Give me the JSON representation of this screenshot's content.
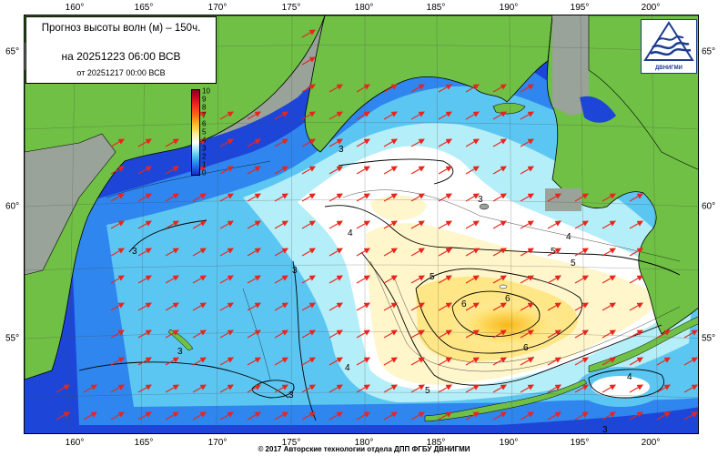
{
  "title": {
    "line1": "Прогноз высоты волн (м) – 150ч.",
    "line2": "на 20251223 06:00 ВСВ",
    "line3": "от 20251217 00:00 ВСВ"
  },
  "lon_labels": [
    "160°",
    "165°",
    "170°",
    "175°",
    "180°",
    "185°",
    "190°",
    "195°",
    "200°"
  ],
  "lat_labels": [
    "65°",
    "60°",
    "55°"
  ],
  "colorbar": {
    "labels": [
      "10",
      "9",
      "8",
      "7",
      "6",
      "5",
      "4",
      "3",
      "2",
      "1",
      "0"
    ]
  },
  "contour_labels": [
    "3",
    "3",
    "4",
    "5",
    "5",
    "5",
    "6",
    "6",
    "6",
    "4",
    "5",
    "4",
    "4",
    "3",
    "3",
    "3",
    "3",
    "3"
  ],
  "logo": {
    "text": "ДВНИГМИ"
  },
  "copyright": "© 2017 Авторские технологии отдела ДПП ФГБУ ДВНИГМИ",
  "colors": {
    "land": "#6fc045",
    "ice_gray": "#9aa39a",
    "arrows": "#e8251c",
    "contour": "#000000"
  }
}
